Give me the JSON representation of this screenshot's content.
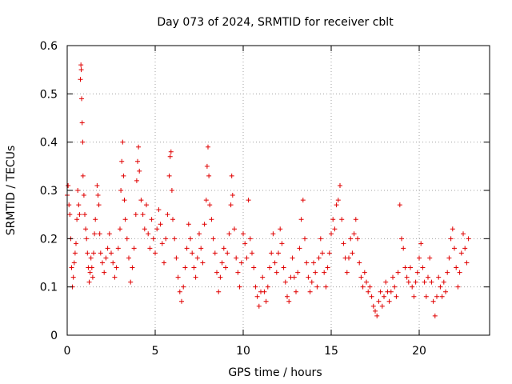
{
  "chart_data": {
    "type": "scatter",
    "title": "Day 073 of 2024, SRMTID for receiver cblt",
    "xlabel": "GPS time / hours",
    "ylabel": "SRMTID / TECUs",
    "xlim": [
      0,
      24
    ],
    "ylim": [
      0,
      0.6
    ],
    "xticks": [
      0,
      5,
      10,
      15,
      20
    ],
    "xtick_labels": [
      "0",
      "5",
      "10",
      "15",
      "20"
    ],
    "yticks": [
      0,
      0.1,
      0.2,
      0.3,
      0.4,
      0.5,
      0.6
    ],
    "ytick_labels": [
      "0",
      "0.1",
      "0.2",
      "0.3",
      "0.4",
      "0.5",
      "0.6"
    ],
    "grid": true,
    "marker": "+",
    "color": "#e00000",
    "series": [
      {
        "name": "SRMTID",
        "points": [
          [
            0.0,
            0.29
          ],
          [
            0.05,
            0.31
          ],
          [
            0.1,
            0.27
          ],
          [
            0.15,
            0.25
          ],
          [
            0.2,
            0.2
          ],
          [
            0.25,
            0.14
          ],
          [
            0.3,
            0.1
          ],
          [
            0.35,
            0.12
          ],
          [
            0.4,
            0.15
          ],
          [
            0.45,
            0.17
          ],
          [
            0.5,
            0.19
          ],
          [
            0.55,
            0.24
          ],
          [
            0.6,
            0.3
          ],
          [
            0.65,
            0.27
          ],
          [
            0.7,
            0.25
          ],
          [
            0.75,
            0.53
          ],
          [
            0.78,
            0.56
          ],
          [
            0.8,
            0.55
          ],
          [
            0.82,
            0.49
          ],
          [
            0.85,
            0.44
          ],
          [
            0.88,
            0.4
          ],
          [
            0.9,
            0.33
          ],
          [
            0.95,
            0.29
          ],
          [
            1.0,
            0.25
          ],
          [
            1.05,
            0.22
          ],
          [
            1.1,
            0.2
          ],
          [
            1.15,
            0.17
          ],
          [
            1.2,
            0.14
          ],
          [
            1.25,
            0.11
          ],
          [
            1.3,
            0.13
          ],
          [
            1.35,
            0.16
          ],
          [
            1.4,
            0.14
          ],
          [
            1.45,
            0.12
          ],
          [
            1.5,
            0.17
          ],
          [
            1.55,
            0.21
          ],
          [
            1.6,
            0.24
          ],
          [
            1.7,
            0.31
          ],
          [
            1.75,
            0.29
          ],
          [
            1.8,
            0.27
          ],
          [
            1.85,
            0.21
          ],
          [
            1.9,
            0.17
          ],
          [
            2.0,
            0.15
          ],
          [
            2.1,
            0.13
          ],
          [
            2.2,
            0.16
          ],
          [
            2.3,
            0.18
          ],
          [
            2.4,
            0.21
          ],
          [
            2.5,
            0.17
          ],
          [
            2.6,
            0.15
          ],
          [
            2.7,
            0.12
          ],
          [
            2.8,
            0.14
          ],
          [
            2.9,
            0.18
          ],
          [
            3.0,
            0.22
          ],
          [
            3.05,
            0.3
          ],
          [
            3.1,
            0.36
          ],
          [
            3.15,
            0.4
          ],
          [
            3.2,
            0.33
          ],
          [
            3.25,
            0.28
          ],
          [
            3.3,
            0.24
          ],
          [
            3.4,
            0.2
          ],
          [
            3.5,
            0.16
          ],
          [
            3.6,
            0.11
          ],
          [
            3.7,
            0.14
          ],
          [
            3.8,
            0.18
          ],
          [
            3.9,
            0.25
          ],
          [
            3.95,
            0.32
          ],
          [
            4.0,
            0.36
          ],
          [
            4.05,
            0.39
          ],
          [
            4.1,
            0.34
          ],
          [
            4.2,
            0.28
          ],
          [
            4.3,
            0.25
          ],
          [
            4.4,
            0.22
          ],
          [
            4.5,
            0.27
          ],
          [
            4.6,
            0.21
          ],
          [
            4.7,
            0.18
          ],
          [
            4.8,
            0.24
          ],
          [
            4.9,
            0.2
          ],
          [
            5.0,
            0.17
          ],
          [
            5.1,
            0.22
          ],
          [
            5.2,
            0.26
          ],
          [
            5.3,
            0.23
          ],
          [
            5.4,
            0.19
          ],
          [
            5.5,
            0.15
          ],
          [
            5.6,
            0.2
          ],
          [
            5.7,
            0.25
          ],
          [
            5.8,
            0.33
          ],
          [
            5.85,
            0.37
          ],
          [
            5.9,
            0.38
          ],
          [
            5.95,
            0.3
          ],
          [
            6.0,
            0.24
          ],
          [
            6.1,
            0.2
          ],
          [
            6.2,
            0.16
          ],
          [
            6.3,
            0.12
          ],
          [
            6.4,
            0.09
          ],
          [
            6.5,
            0.07
          ],
          [
            6.6,
            0.1
          ],
          [
            6.7,
            0.14
          ],
          [
            6.8,
            0.18
          ],
          [
            6.9,
            0.23
          ],
          [
            7.0,
            0.2
          ],
          [
            7.1,
            0.17
          ],
          [
            7.2,
            0.14
          ],
          [
            7.3,
            0.12
          ],
          [
            7.4,
            0.16
          ],
          [
            7.5,
            0.21
          ],
          [
            7.6,
            0.18
          ],
          [
            7.7,
            0.15
          ],
          [
            7.8,
            0.23
          ],
          [
            7.9,
            0.28
          ],
          [
            7.95,
            0.35
          ],
          [
            8.0,
            0.39
          ],
          [
            8.05,
            0.33
          ],
          [
            8.1,
            0.27
          ],
          [
            8.2,
            0.24
          ],
          [
            8.3,
            0.2
          ],
          [
            8.4,
            0.17
          ],
          [
            8.5,
            0.13
          ],
          [
            8.6,
            0.09
          ],
          [
            8.7,
            0.12
          ],
          [
            8.8,
            0.15
          ],
          [
            8.9,
            0.18
          ],
          [
            9.0,
            0.14
          ],
          [
            9.1,
            0.17
          ],
          [
            9.2,
            0.21
          ],
          [
            9.3,
            0.27
          ],
          [
            9.35,
            0.33
          ],
          [
            9.4,
            0.29
          ],
          [
            9.5,
            0.22
          ],
          [
            9.6,
            0.16
          ],
          [
            9.7,
            0.13
          ],
          [
            9.8,
            0.1
          ],
          [
            9.9,
            0.15
          ],
          [
            10.0,
            0.21
          ],
          [
            10.1,
            0.19
          ],
          [
            10.2,
            0.16
          ],
          [
            10.3,
            0.28
          ],
          [
            10.4,
            0.2
          ],
          [
            10.5,
            0.17
          ],
          [
            10.6,
            0.14
          ],
          [
            10.7,
            0.1
          ],
          [
            10.8,
            0.08
          ],
          [
            10.9,
            0.06
          ],
          [
            11.0,
            0.09
          ],
          [
            11.1,
            0.12
          ],
          [
            11.2,
            0.09
          ],
          [
            11.3,
            0.07
          ],
          [
            11.4,
            0.1
          ],
          [
            11.5,
            0.14
          ],
          [
            11.6,
            0.17
          ],
          [
            11.7,
            0.21
          ],
          [
            11.8,
            0.15
          ],
          [
            11.9,
            0.13
          ],
          [
            12.0,
            0.17
          ],
          [
            12.1,
            0.22
          ],
          [
            12.2,
            0.19
          ],
          [
            12.3,
            0.14
          ],
          [
            12.4,
            0.11
          ],
          [
            12.5,
            0.08
          ],
          [
            12.6,
            0.07
          ],
          [
            12.7,
            0.12
          ],
          [
            12.8,
            0.16
          ],
          [
            12.9,
            0.12
          ],
          [
            13.0,
            0.09
          ],
          [
            13.1,
            0.13
          ],
          [
            13.2,
            0.18
          ],
          [
            13.3,
            0.24
          ],
          [
            13.4,
            0.28
          ],
          [
            13.5,
            0.2
          ],
          [
            13.6,
            0.15
          ],
          [
            13.7,
            0.12
          ],
          [
            13.8,
            0.09
          ],
          [
            13.9,
            0.11
          ],
          [
            14.0,
            0.15
          ],
          [
            14.1,
            0.13
          ],
          [
            14.2,
            0.1
          ],
          [
            14.3,
            0.16
          ],
          [
            14.4,
            0.2
          ],
          [
            14.5,
            0.17
          ],
          [
            14.6,
            0.13
          ],
          [
            14.7,
            0.1
          ],
          [
            14.8,
            0.14
          ],
          [
            14.9,
            0.17
          ],
          [
            15.0,
            0.21
          ],
          [
            15.1,
            0.24
          ],
          [
            15.2,
            0.22
          ],
          [
            15.3,
            0.27
          ],
          [
            15.4,
            0.28
          ],
          [
            15.5,
            0.31
          ],
          [
            15.6,
            0.24
          ],
          [
            15.7,
            0.19
          ],
          [
            15.8,
            0.16
          ],
          [
            15.9,
            0.13
          ],
          [
            16.0,
            0.16
          ],
          [
            16.1,
            0.2
          ],
          [
            16.2,
            0.17
          ],
          [
            16.3,
            0.21
          ],
          [
            16.4,
            0.24
          ],
          [
            16.5,
            0.2
          ],
          [
            16.6,
            0.15
          ],
          [
            16.7,
            0.12
          ],
          [
            16.8,
            0.1
          ],
          [
            16.9,
            0.13
          ],
          [
            17.0,
            0.11
          ],
          [
            17.1,
            0.09
          ],
          [
            17.2,
            0.1
          ],
          [
            17.3,
            0.08
          ],
          [
            17.4,
            0.06
          ],
          [
            17.5,
            0.05
          ],
          [
            17.6,
            0.04
          ],
          [
            17.7,
            0.07
          ],
          [
            17.8,
            0.09
          ],
          [
            17.9,
            0.06
          ],
          [
            18.0,
            0.08
          ],
          [
            18.1,
            0.11
          ],
          [
            18.2,
            0.09
          ],
          [
            18.3,
            0.07
          ],
          [
            18.4,
            0.09
          ],
          [
            18.5,
            0.12
          ],
          [
            18.6,
            0.1
          ],
          [
            18.7,
            0.08
          ],
          [
            18.8,
            0.13
          ],
          [
            18.9,
            0.27
          ],
          [
            19.0,
            0.2
          ],
          [
            19.1,
            0.18
          ],
          [
            19.2,
            0.14
          ],
          [
            19.3,
            0.12
          ],
          [
            19.4,
            0.11
          ],
          [
            19.5,
            0.14
          ],
          [
            19.6,
            0.1
          ],
          [
            19.7,
            0.08
          ],
          [
            19.8,
            0.11
          ],
          [
            19.9,
            0.13
          ],
          [
            20.0,
            0.16
          ],
          [
            20.1,
            0.19
          ],
          [
            20.2,
            0.14
          ],
          [
            20.3,
            0.11
          ],
          [
            20.4,
            0.08
          ],
          [
            20.5,
            0.12
          ],
          [
            20.6,
            0.16
          ],
          [
            20.7,
            0.11
          ],
          [
            20.8,
            0.07
          ],
          [
            20.9,
            0.04
          ],
          [
            21.0,
            0.08
          ],
          [
            21.1,
            0.12
          ],
          [
            21.2,
            0.1
          ],
          [
            21.3,
            0.08
          ],
          [
            21.4,
            0.11
          ],
          [
            21.5,
            0.09
          ],
          [
            21.6,
            0.13
          ],
          [
            21.7,
            0.16
          ],
          [
            21.8,
            0.2
          ],
          [
            21.9,
            0.22
          ],
          [
            22.0,
            0.18
          ],
          [
            22.1,
            0.14
          ],
          [
            22.2,
            0.1
          ],
          [
            22.3,
            0.13
          ],
          [
            22.4,
            0.17
          ],
          [
            22.5,
            0.21
          ],
          [
            22.6,
            0.18
          ],
          [
            22.7,
            0.15
          ],
          [
            22.8,
            0.2
          ]
        ]
      }
    ]
  }
}
